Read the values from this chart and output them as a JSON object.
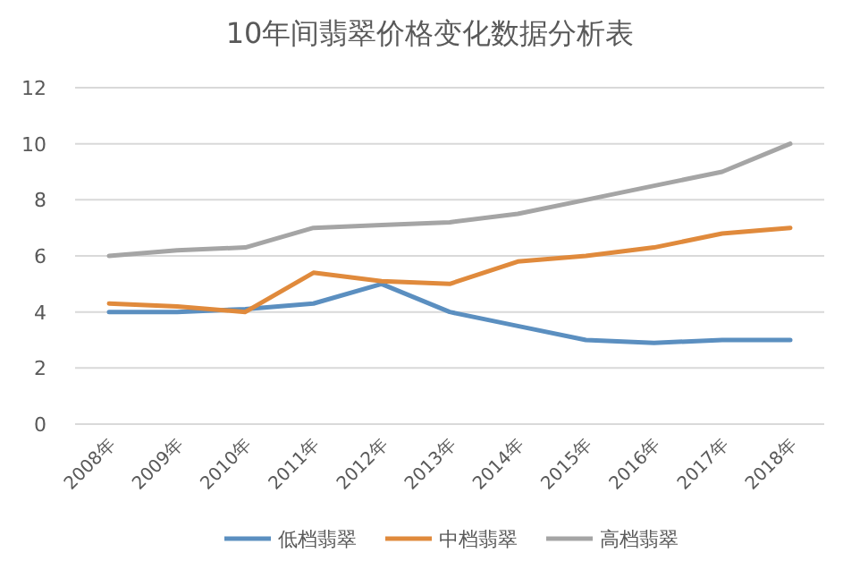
{
  "chart_data": {
    "type": "line",
    "title": "10年间翡翠价格变化数据分析表",
    "categories": [
      "2008年",
      "2009年",
      "2010年",
      "2011年",
      "2012年",
      "2013年",
      "2014年",
      "2015年",
      "2016年",
      "2017年",
      "2018年"
    ],
    "series": [
      {
        "name": "低档翡翠",
        "color": "#5b8fc0",
        "values": [
          4.0,
          4.0,
          4.1,
          4.3,
          5.0,
          4.0,
          3.5,
          3.0,
          2.9,
          3.0,
          3.0
        ]
      },
      {
        "name": "中档翡翠",
        "color": "#e08a3c",
        "values": [
          4.3,
          4.2,
          4.0,
          5.4,
          5.1,
          5.0,
          5.8,
          6.0,
          6.3,
          6.8,
          7.0
        ]
      },
      {
        "name": "高档翡翠",
        "color": "#a5a5a5",
        "values": [
          6.0,
          6.2,
          6.3,
          7.0,
          7.1,
          7.2,
          7.5,
          8.0,
          8.5,
          9.0,
          10.0
        ]
      }
    ],
    "ylim": [
      0,
      12
    ],
    "yticks": [
      0,
      2,
      4,
      6,
      8,
      10,
      12
    ],
    "grid": "y",
    "legend": "bottom",
    "marker": "none",
    "line_style": "solid"
  }
}
